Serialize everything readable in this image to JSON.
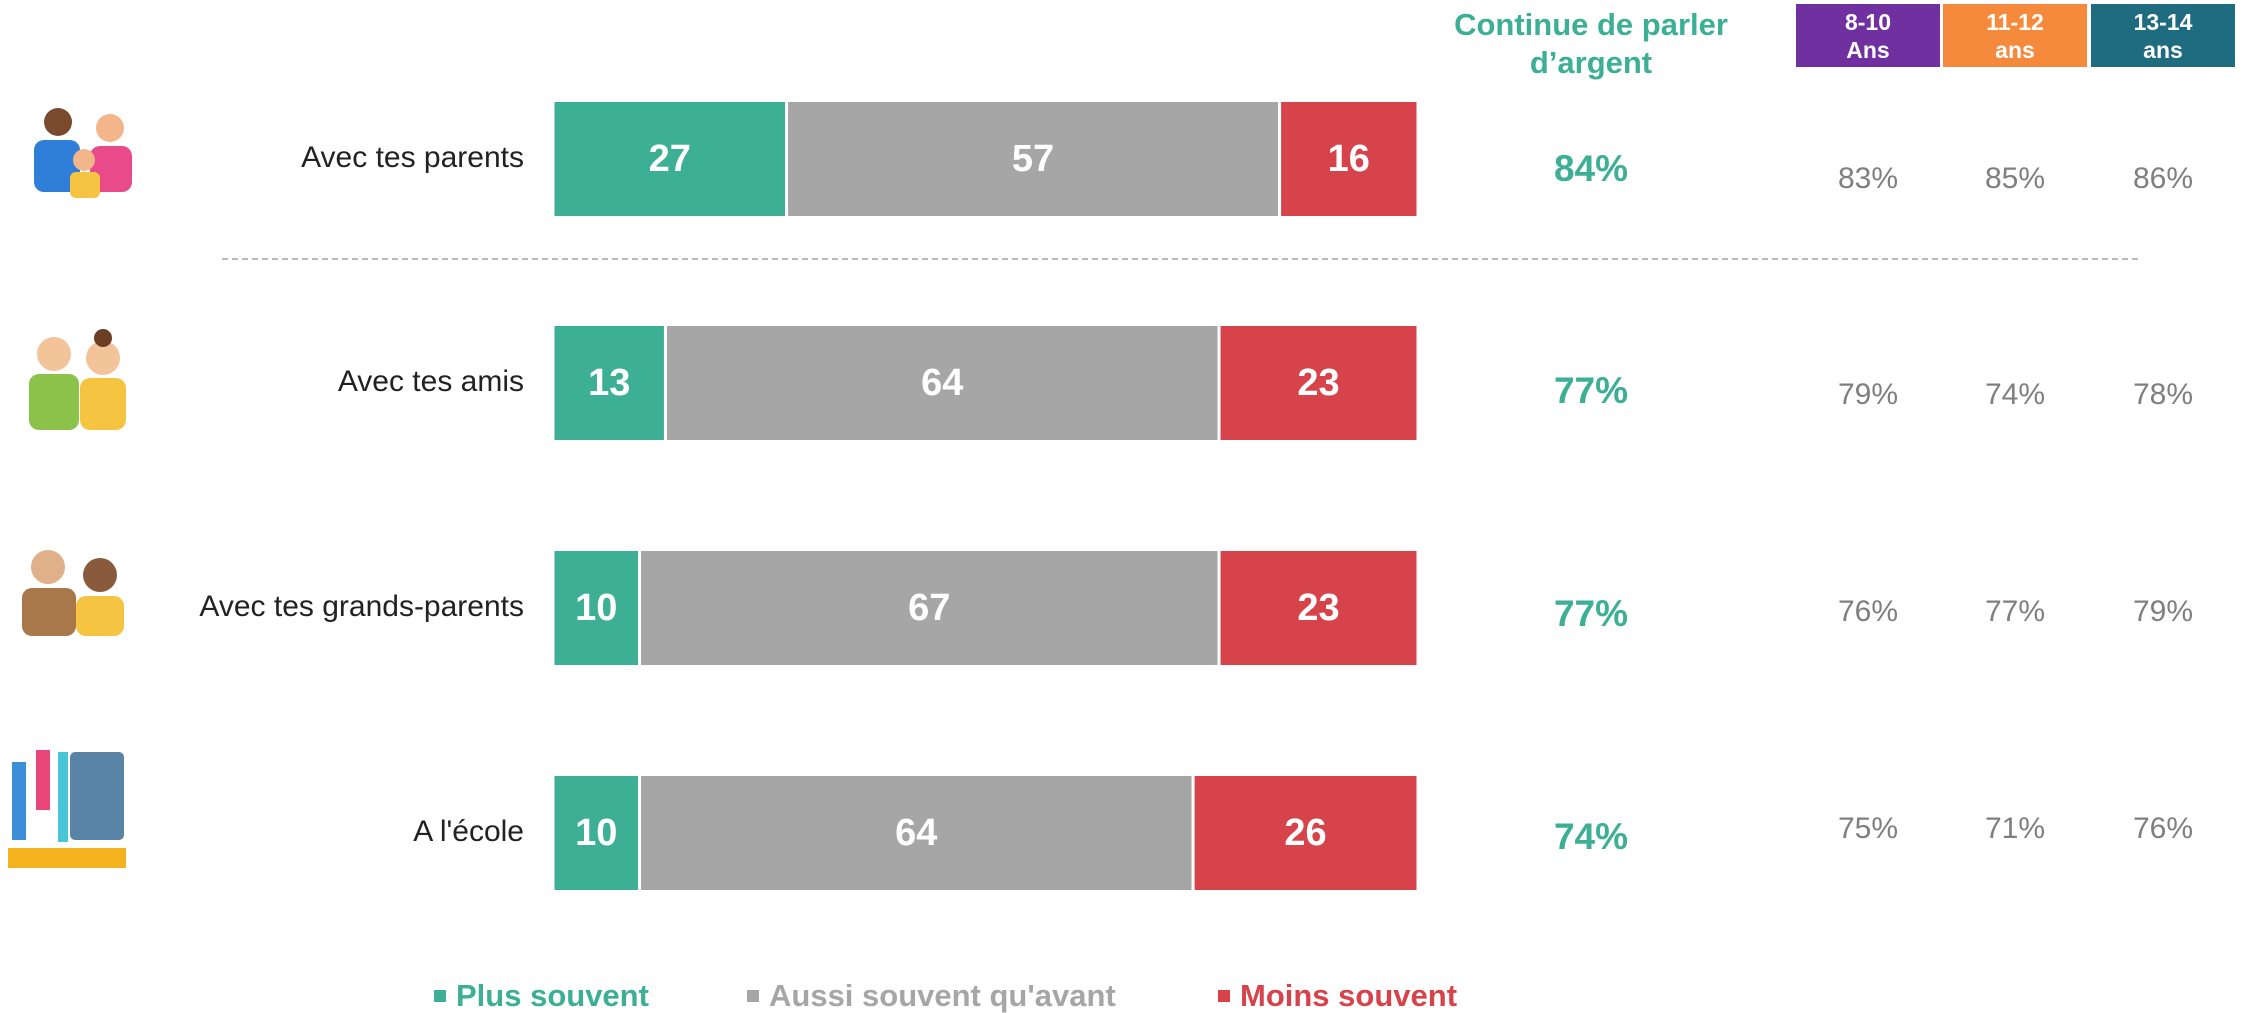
{
  "chart_data": {
    "type": "stacked-bar",
    "categories": [
      "Avec tes parents",
      "Avec tes amis",
      "Avec tes grands-parents",
      "A l'école"
    ],
    "series": [
      {
        "name": "Plus souvent",
        "color": "#3daf94",
        "values": [
          27,
          13,
          10,
          10
        ]
      },
      {
        "name": "Aussi souvent qu'avant",
        "color": "#a6a6a6",
        "values": [
          57,
          64,
          67,
          64
        ]
      },
      {
        "name": "Moins souvent",
        "color": "#d6434b",
        "values": [
          16,
          23,
          23,
          26
        ]
      }
    ],
    "xlim": [
      0,
      100
    ]
  },
  "side_table": {
    "total_header": "Continue de parler\nd’argent",
    "total": [
      "84%",
      "77%",
      "77%",
      "74%"
    ],
    "age_groups": [
      {
        "label": "8-10\nAns",
        "color": "#7030a0",
        "values": [
          "83%",
          "79%",
          "76%",
          "75%"
        ]
      },
      {
        "label": "11-12\nans",
        "color": "#f58a3c",
        "values": [
          "85%",
          "74%",
          "77%",
          "71%"
        ]
      },
      {
        "label": "13-14\nans",
        "color": "#1f6b80",
        "values": [
          "86%",
          "78%",
          "79%",
          "76%"
        ]
      }
    ]
  }
}
